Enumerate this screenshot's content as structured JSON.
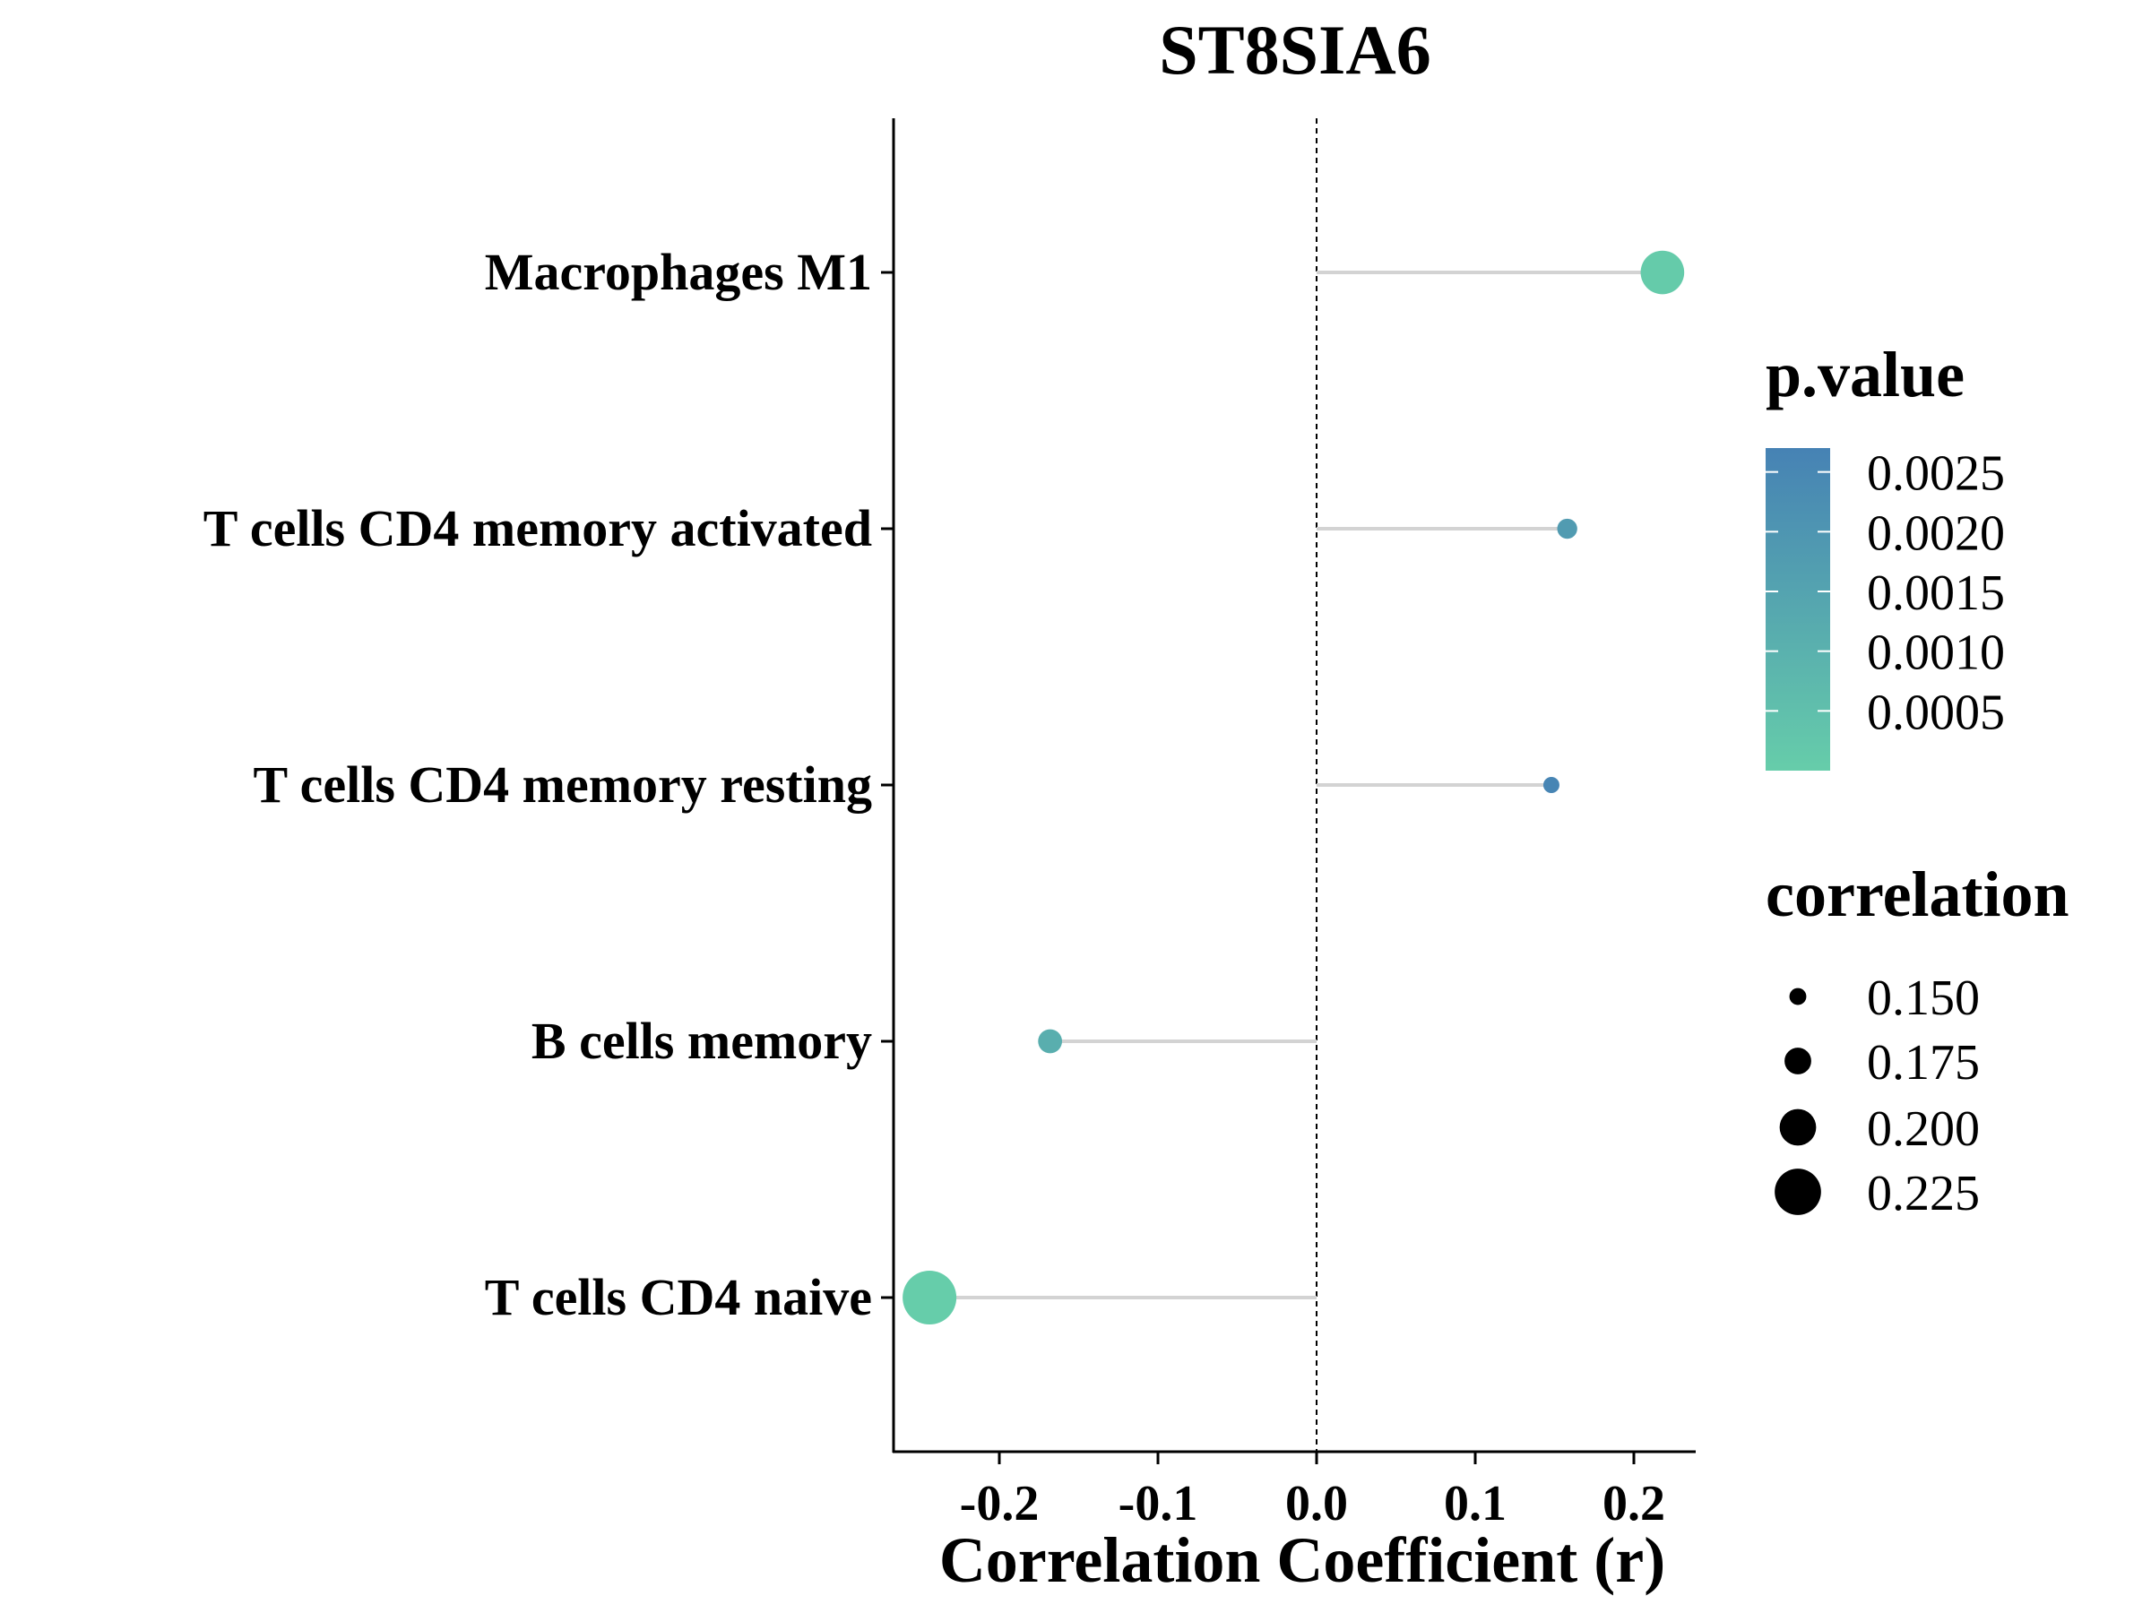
{
  "chart_data": {
    "type": "scatter",
    "title": "ST8SIA6",
    "xlabel": "Correlation Coefficient (r)",
    "ylabel": "",
    "xlim": [
      -0.267,
      0.24
    ],
    "x_ticks": [
      -0.2,
      -0.1,
      0.0,
      0.1,
      0.2
    ],
    "x_tick_labels": [
      "-0.2",
      "-0.1",
      "0.0",
      "0.1",
      "0.2"
    ],
    "reference_line": 0.0,
    "categories": [
      "Macrophages M1",
      "T cells CD4 memory activated",
      "T cells CD4 memory resting",
      "B cells memory",
      "T cells CD4 naive"
    ],
    "points": [
      {
        "category": "Macrophages M1",
        "r": 0.218,
        "p_value": 8e-05,
        "correlation": 0.218
      },
      {
        "category": "T cells CD4 memory activated",
        "r": 0.158,
        "p_value": 0.0018,
        "correlation": 0.158
      },
      {
        "category": "T cells CD4 memory resting",
        "r": 0.148,
        "p_value": 0.0026,
        "correlation": 0.148
      },
      {
        "category": "B cells memory",
        "r": -0.168,
        "p_value": 0.0011,
        "correlation": 0.168
      },
      {
        "category": "T cells CD4 naive",
        "r": -0.244,
        "p_value": 1e-05,
        "correlation": 0.244
      }
    ],
    "legend": {
      "color": {
        "title": "p.value",
        "range": [
          0.0,
          0.0027
        ],
        "low_color": "#66CDAA",
        "high_color": "#4682B4",
        "ticks": [
          0.0025,
          0.002,
          0.0015,
          0.001,
          0.0005
        ],
        "tick_labels": [
          "0.0025",
          "0.0020",
          "0.0015",
          "0.0010",
          "0.0005"
        ]
      },
      "size": {
        "title": "correlation",
        "values": [
          0.15,
          0.175,
          0.2,
          0.225
        ],
        "labels": [
          "0.150",
          "0.175",
          "0.200",
          "0.225"
        ]
      },
      "placement": "right"
    },
    "grid": false
  }
}
